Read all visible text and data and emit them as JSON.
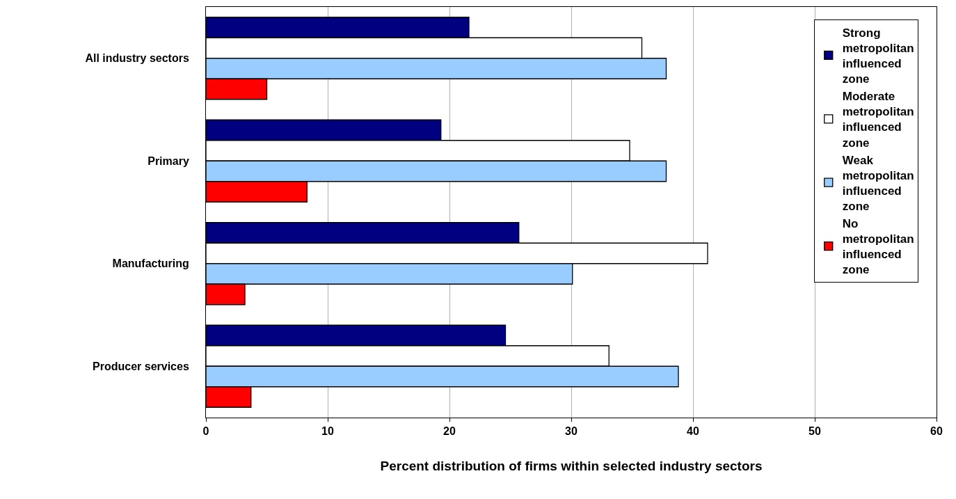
{
  "chart_data": {
    "type": "bar",
    "orientation": "horizontal",
    "xlabel": "Percent distribution of firms within selected industry sectors",
    "categories": [
      "All industry sectors",
      "Primary",
      "Manufacturing",
      "Producer services"
    ],
    "series": [
      {
        "name": "Strong metropolitan influenced zone",
        "color": "#000080",
        "values": [
          21.6,
          19.3,
          25.7,
          24.6
        ]
      },
      {
        "name": "Moderate metropolitan influenced zone",
        "color": "#ffffff",
        "values": [
          35.8,
          34.8,
          41.2,
          33.1
        ]
      },
      {
        "name": "Weak metropolitan influenced zone",
        "color": "#99ccff",
        "values": [
          37.8,
          37.8,
          30.1,
          38.8
        ]
      },
      {
        "name": "No metropolitan influenced zone",
        "color": "#ff0000",
        "values": [
          5.0,
          8.3,
          3.2,
          3.7
        ]
      }
    ],
    "xlim": [
      0,
      60
    ],
    "xticks": [
      0,
      10,
      20,
      30,
      40,
      50,
      60
    ],
    "grid": "x",
    "legend": "right"
  }
}
